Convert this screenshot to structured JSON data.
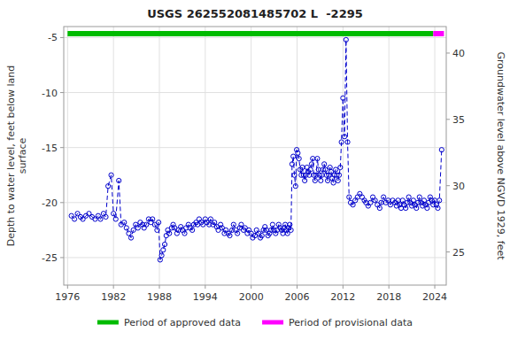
{
  "chart_data": {
    "type": "line",
    "title": "USGS 262552081485702 L  -2295",
    "y_label": "Depth to water level, feet below land\nsurface",
    "y2_label": "Groundwater level above NGVD 1929, feet",
    "ylim": [
      -27.5,
      -4.0
    ],
    "yticks": [
      -25,
      -20,
      -15,
      -10,
      -5
    ],
    "y2lim": [
      22.5,
      42.0
    ],
    "y2ticks": [
      40,
      35,
      30,
      25
    ],
    "xlim": [
      1975.5,
      2025.5
    ],
    "xticks": [
      1976,
      1982,
      1988,
      1994,
      2000,
      2006,
      2012,
      2018,
      2024
    ],
    "grid": true,
    "legend": "bottom",
    "color": "#0000CC",
    "marker": "circle",
    "line_style": "dashed",
    "periods": [
      {
        "name": "Period of approved data",
        "color": "#00bb00",
        "start": 1976.0,
        "end": 2023.8
      },
      {
        "name": "Period of provisional data",
        "color": "#ff00ff",
        "start": 2023.8,
        "end": 2025.2
      }
    ],
    "x": [
      1976.5,
      1976.9,
      1977.3,
      1977.7,
      1978.0,
      1978.4,
      1978.8,
      1979.2,
      1979.6,
      1980.0,
      1980.3,
      1980.7,
      1981.0,
      1981.3,
      1981.7,
      1982.0,
      1982.3,
      1982.7,
      1983.0,
      1983.4,
      1983.7,
      1984.0,
      1984.3,
      1984.6,
      1984.9,
      1985.2,
      1985.5,
      1985.8,
      1986.0,
      1986.3,
      1986.6,
      1986.9,
      1987.1,
      1987.4,
      1987.7,
      1987.9,
      1988.1,
      1988.3,
      1988.5,
      1988.7,
      1988.9,
      1989.1,
      1989.3,
      1989.6,
      1989.8,
      1990.0,
      1990.3,
      1990.5,
      1990.8,
      1991.0,
      1991.3,
      1991.5,
      1991.8,
      1992.0,
      1992.3,
      1992.5,
      1992.8,
      1993.0,
      1993.2,
      1993.5,
      1993.7,
      1994.0,
      1994.2,
      1994.5,
      1994.7,
      1995.0,
      1995.2,
      1995.5,
      1995.7,
      1996.0,
      1996.2,
      1996.5,
      1996.7,
      1997.0,
      1997.2,
      1997.5,
      1997.7,
      1998.0,
      1998.2,
      1998.5,
      1998.7,
      1999.0,
      1999.2,
      1999.5,
      1999.7,
      2000.0,
      2000.2,
      2000.5,
      2000.7,
      2001.0,
      2001.2,
      2001.4,
      2001.6,
      2001.8,
      2002.0,
      2002.2,
      2002.4,
      2002.6,
      2002.8,
      2003.0,
      2003.2,
      2003.4,
      2003.6,
      2003.8,
      2004.0,
      2004.15,
      2004.3,
      2004.45,
      2004.6,
      2004.75,
      2004.9,
      2005.05,
      2005.2,
      2005.35,
      2005.5,
      2005.65,
      2005.8,
      2005.95,
      2006.1,
      2006.25,
      2006.4,
      2006.55,
      2006.7,
      2006.85,
      2007.0,
      2007.15,
      2007.3,
      2007.45,
      2007.6,
      2007.75,
      2007.9,
      2008.05,
      2008.2,
      2008.35,
      2008.5,
      2008.65,
      2008.8,
      2008.95,
      2009.1,
      2009.25,
      2009.4,
      2009.55,
      2009.7,
      2009.85,
      2010.0,
      2010.15,
      2010.3,
      2010.45,
      2010.6,
      2010.75,
      2010.9,
      2011.05,
      2011.2,
      2011.35,
      2011.5,
      2011.65,
      2011.8,
      2012.0,
      2012.2,
      2012.4,
      2012.6,
      2012.8,
      2013.0,
      2013.3,
      2013.6,
      2013.9,
      2014.2,
      2014.5,
      2014.8,
      2015.0,
      2015.3,
      2015.6,
      2015.9,
      2016.2,
      2016.5,
      2016.8,
      2017.0,
      2017.3,
      2017.6,
      2017.9,
      2018.2,
      2018.5,
      2018.8,
      2019.0,
      2019.2,
      2019.4,
      2019.6,
      2019.8,
      2020.0,
      2020.2,
      2020.4,
      2020.6,
      2020.8,
      2021.0,
      2021.2,
      2021.4,
      2021.6,
      2021.8,
      2022.0,
      2022.2,
      2022.4,
      2022.6,
      2022.8,
      2023.0,
      2023.2,
      2023.4,
      2023.6,
      2023.8,
      2024.0,
      2024.2,
      2024.4,
      2024.6,
      2024.9
    ],
    "values": [
      -21.2,
      -21.5,
      -21.0,
      -21.3,
      -21.5,
      -21.2,
      -21.0,
      -21.3,
      -21.5,
      -21.2,
      -21.5,
      -21.0,
      -21.3,
      -18.5,
      -17.5,
      -21.0,
      -21.5,
      -18.0,
      -22.0,
      -21.8,
      -22.3,
      -22.8,
      -23.2,
      -22.5,
      -22.0,
      -22.3,
      -21.8,
      -22.0,
      -22.3,
      -22.0,
      -21.5,
      -21.8,
      -21.5,
      -22.0,
      -22.5,
      -21.8,
      -25.2,
      -24.8,
      -24.3,
      -23.8,
      -23.0,
      -22.5,
      -22.8,
      -22.3,
      -22.0,
      -22.3,
      -22.8,
      -22.5,
      -22.2,
      -22.5,
      -22.8,
      -22.3,
      -22.0,
      -22.3,
      -22.5,
      -22.0,
      -21.8,
      -22.0,
      -21.5,
      -21.8,
      -22.0,
      -21.5,
      -21.8,
      -22.0,
      -21.5,
      -22.0,
      -21.8,
      -22.2,
      -22.5,
      -22.0,
      -22.3,
      -22.8,
      -22.5,
      -22.8,
      -23.0,
      -22.5,
      -22.0,
      -22.5,
      -22.8,
      -22.3,
      -22.0,
      -22.5,
      -22.3,
      -22.8,
      -22.5,
      -22.8,
      -23.2,
      -23.0,
      -22.5,
      -22.8,
      -23.2,
      -23.0,
      -22.5,
      -22.2,
      -22.5,
      -23.0,
      -22.8,
      -22.5,
      -22.0,
      -22.5,
      -22.8,
      -22.5,
      -22.0,
      -22.3,
      -22.5,
      -22.8,
      -22.3,
      -22.0,
      -22.5,
      -22.8,
      -22.3,
      -22.0,
      -22.5,
      -16.5,
      -15.8,
      -17.5,
      -18.5,
      -15.2,
      -15.5,
      -16.0,
      -17.0,
      -17.5,
      -16.8,
      -17.5,
      -18.0,
      -17.5,
      -16.8,
      -17.2,
      -17.5,
      -17.0,
      -16.5,
      -16.0,
      -17.5,
      -18.0,
      -17.5,
      -16.0,
      -17.0,
      -17.5,
      -18.0,
      -17.5,
      -17.0,
      -16.5,
      -17.0,
      -17.5,
      -18.0,
      -17.5,
      -16.8,
      -17.2,
      -17.8,
      -18.2,
      -17.5,
      -17.0,
      -17.5,
      -18.0,
      -17.5,
      -16.8,
      -14.5,
      -10.5,
      -14.0,
      -5.2,
      -14.5,
      -19.5,
      -20.0,
      -20.2,
      -19.8,
      -19.5,
      -19.2,
      -19.5,
      -19.8,
      -20.0,
      -20.3,
      -20.0,
      -19.5,
      -19.8,
      -20.2,
      -20.5,
      -20.0,
      -19.5,
      -20.0,
      -19.8,
      -20.2,
      -19.8,
      -20.0,
      -20.3,
      -19.8,
      -20.2,
      -20.5,
      -19.8,
      -20.2,
      -20.5,
      -20.0,
      -19.5,
      -20.0,
      -20.3,
      -19.8,
      -20.2,
      -20.5,
      -20.0,
      -19.5,
      -20.0,
      -20.3,
      -19.8,
      -20.2,
      -20.5,
      -20.0,
      -19.5,
      -19.8,
      -20.2,
      -19.8,
      -20.2,
      -20.5,
      -19.8,
      -15.2
    ]
  }
}
